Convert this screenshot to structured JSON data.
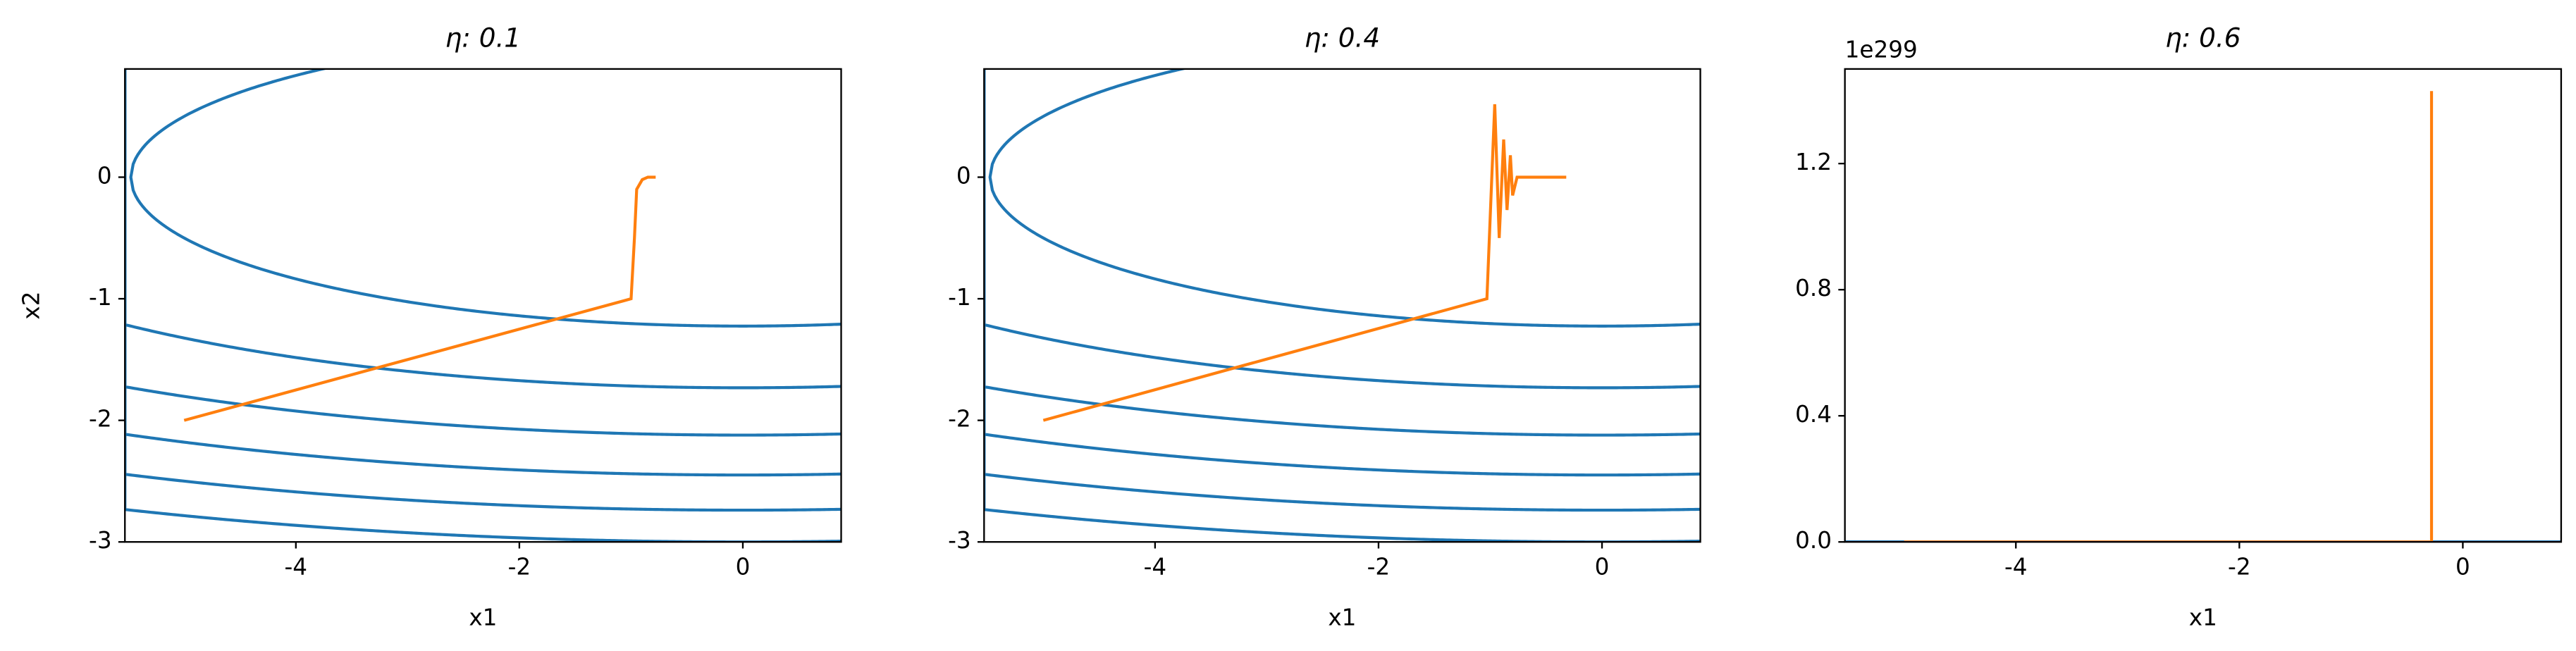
{
  "chart_data": [
    {
      "type": "line",
      "title": "η: 0.1",
      "xlabel": "x1",
      "ylabel": "x2",
      "xlim": [
        -5.53,
        0.88
      ],
      "ylim": [
        -3,
        0.89
      ],
      "xticks": [
        -4,
        -2,
        0
      ],
      "yticks": [
        -3,
        -2,
        -1,
        0
      ],
      "contour_levels": [
        3,
        6,
        9,
        12,
        15,
        18
      ],
      "contour_color": "#1f77b4",
      "series": [
        {
          "color": "#ff7f0e",
          "x": [
            -5,
            -1,
            -0.97,
            -0.95,
            -0.9,
            -0.85,
            -0.78
          ],
          "values": [
            -2,
            -1,
            -0.5,
            -0.1,
            -0.02,
            0,
            0
          ]
        }
      ]
    },
    {
      "type": "line",
      "title": "η: 0.4",
      "xlabel": "x1",
      "xlim": [
        -5.53,
        0.88
      ],
      "ylim": [
        -3,
        0.89
      ],
      "xticks": [
        -4,
        -2,
        0
      ],
      "yticks": [
        -3,
        -2,
        -1,
        0
      ],
      "contour_levels": [
        3,
        6,
        9,
        12,
        15,
        18
      ],
      "contour_color": "#1f77b4",
      "series": [
        {
          "color": "#ff7f0e",
          "x": [
            -5,
            -1.03,
            -0.96,
            -0.92,
            -0.88,
            -0.85,
            -0.82,
            -0.8,
            -0.76,
            -0.32
          ],
          "values": [
            -2,
            -1,
            0.6,
            -0.5,
            0.31,
            -0.27,
            0.18,
            -0.15,
            0,
            0
          ]
        }
      ]
    },
    {
      "type": "line",
      "title": "η: 0.6",
      "xlabel": "x1",
      "xlim": [
        -5.53,
        0.88
      ],
      "ylim": [
        0,
        1.5
      ],
      "xticks": [
        -4,
        -2,
        0
      ],
      "yticks": [
        {
          "value": 0,
          "label": "0.0"
        },
        0.4,
        0.8,
        1.2
      ],
      "y_offset": {
        "value": 1e+299,
        "label": "1e299"
      },
      "contour_levels": [
        3,
        6,
        9,
        12,
        15,
        18
      ],
      "contour_color": "#1f77b4",
      "series": [
        {
          "color": "#ff7f0e",
          "x": [
            -5,
            -0.28,
            -0.28
          ],
          "values": [
            0,
            0,
            1.43
          ]
        }
      ]
    }
  ]
}
